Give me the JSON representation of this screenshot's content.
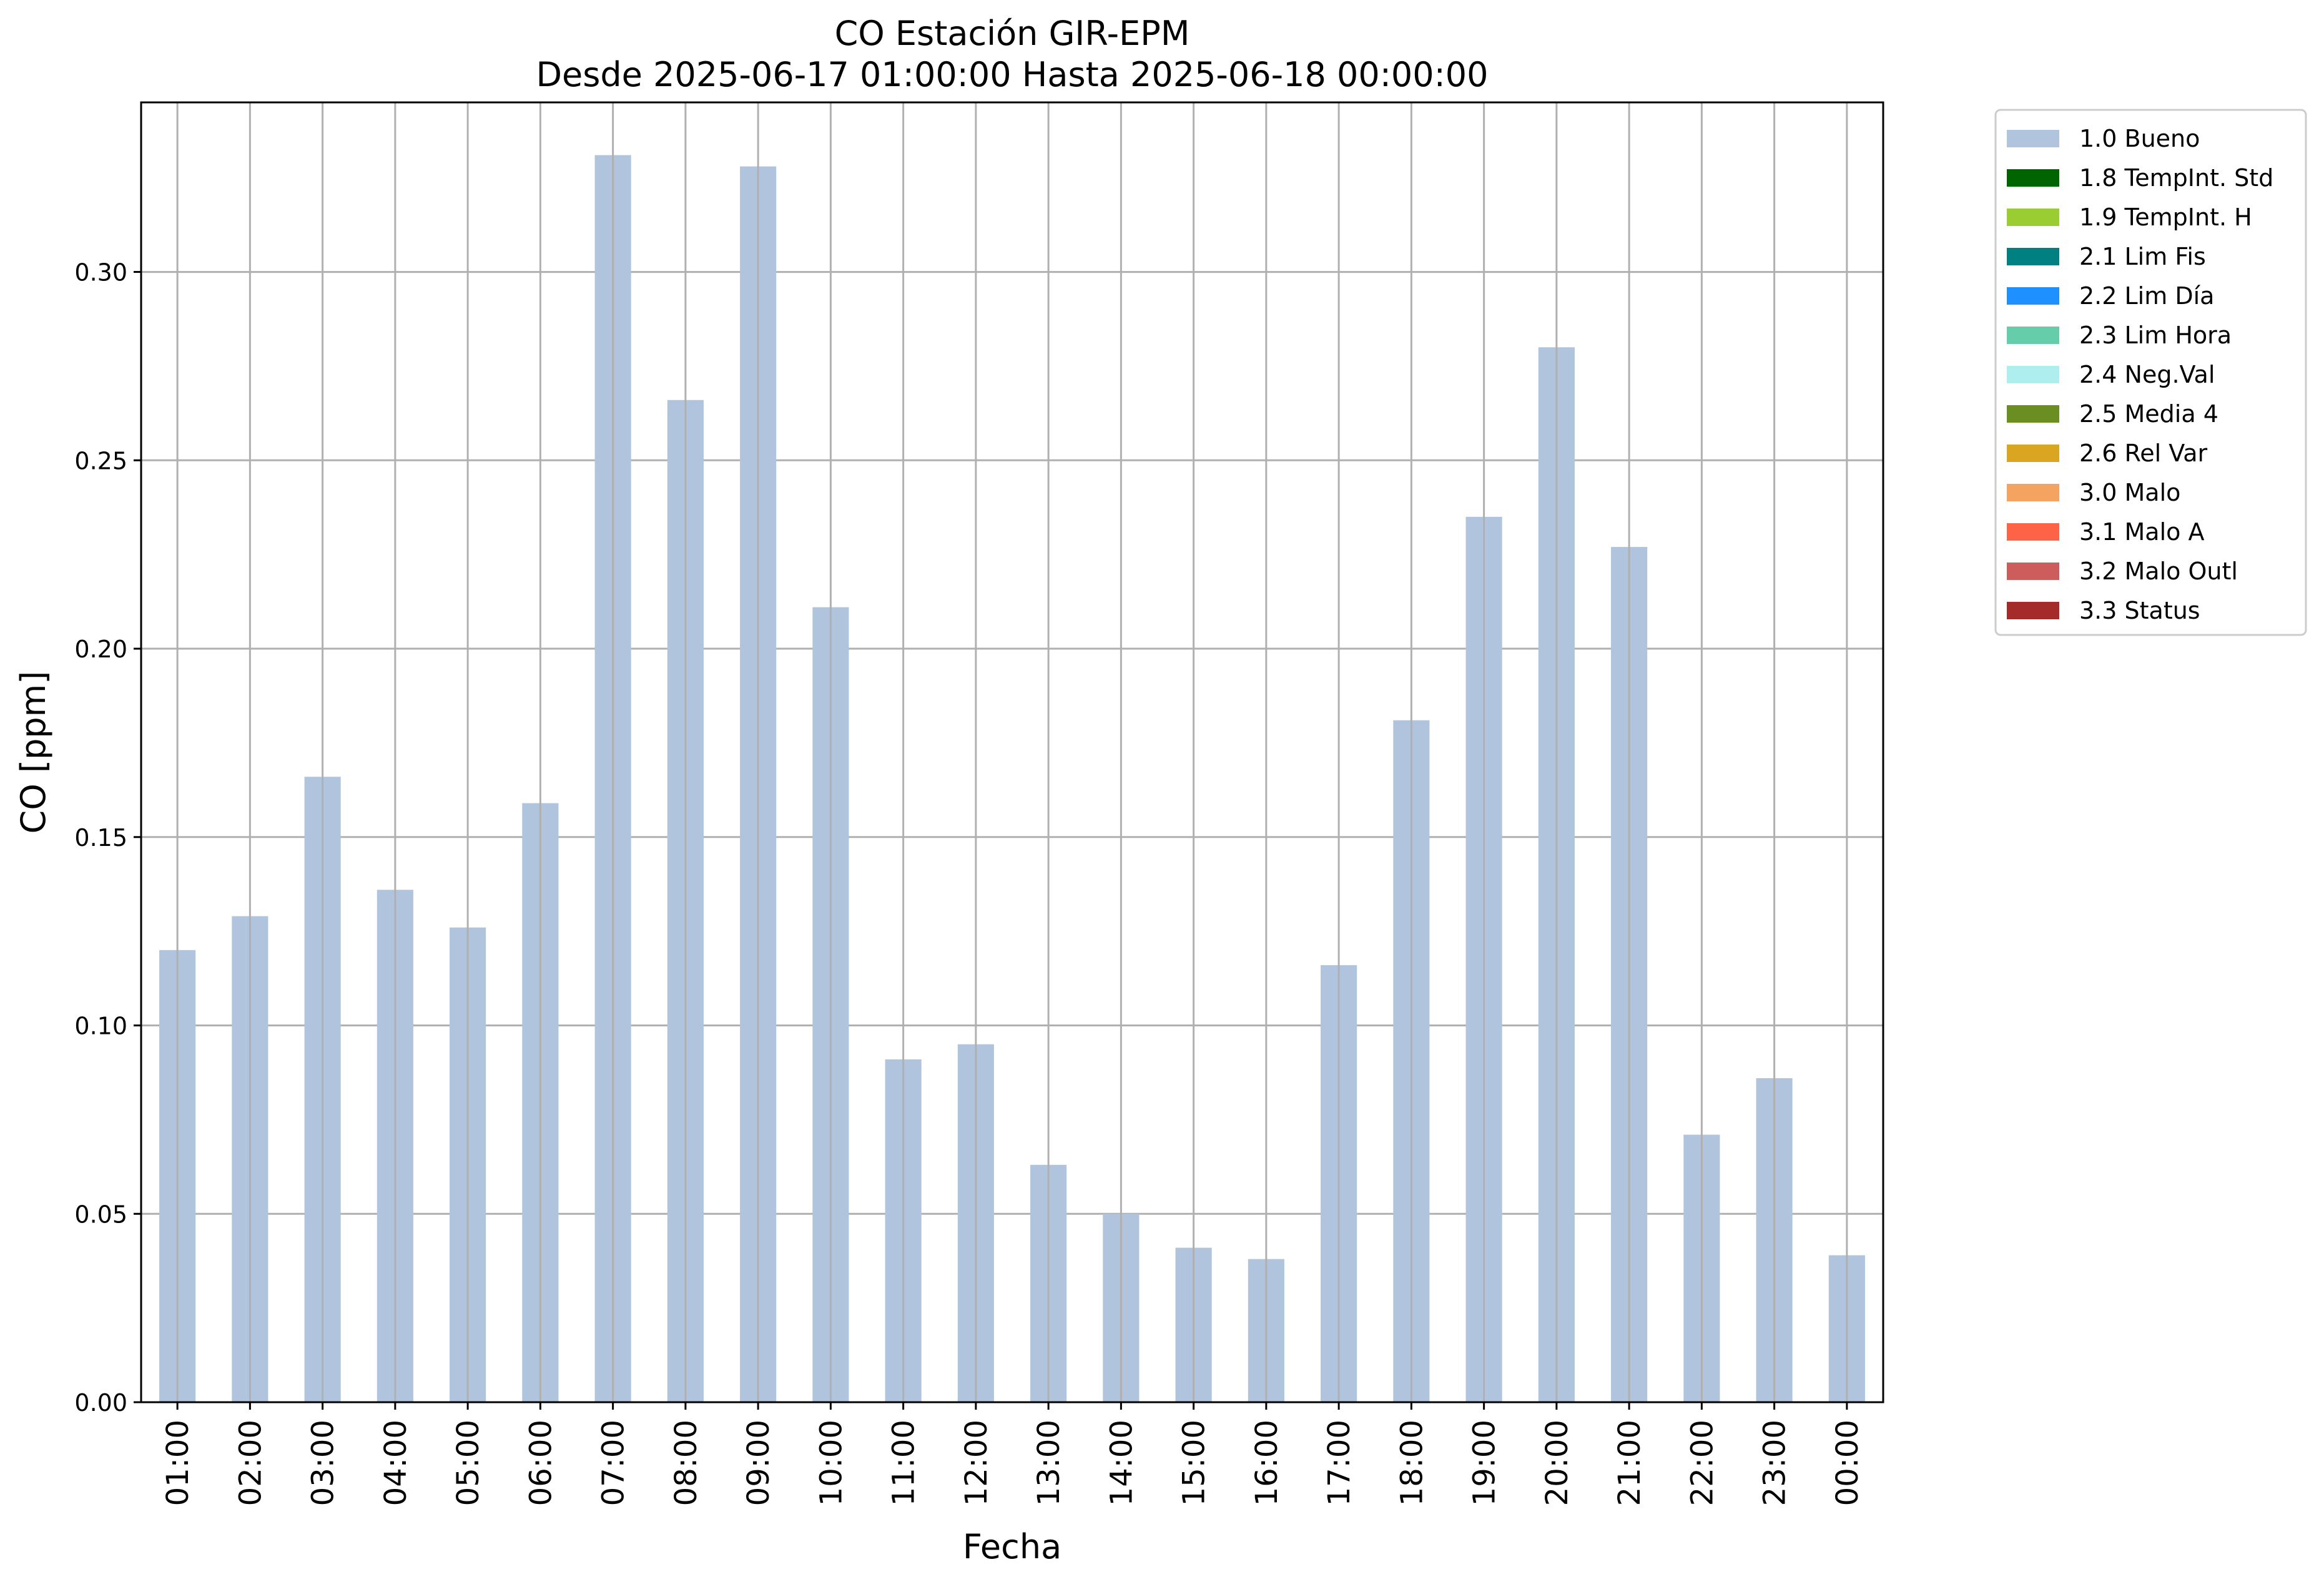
{
  "chart_data": {
    "type": "bar",
    "title": "CO Estación GIR-EPM",
    "subtitle": "Desde 2025-06-17 01:00:00 Hasta 2025-06-18 00:00:00",
    "xlabel": "Fecha",
    "ylabel": "CO [ppm]",
    "ylim": [
      0,
      0.345
    ],
    "yticks": [
      "0.00",
      "0.05",
      "0.10",
      "0.15",
      "0.20",
      "0.25",
      "0.30"
    ],
    "grid": true,
    "legend_position": "outside top-right",
    "categories": [
      "01:00",
      "02:00",
      "03:00",
      "04:00",
      "05:00",
      "06:00",
      "07:00",
      "08:00",
      "09:00",
      "10:00",
      "11:00",
      "12:00",
      "13:00",
      "14:00",
      "15:00",
      "16:00",
      "17:00",
      "18:00",
      "19:00",
      "20:00",
      "21:00",
      "22:00",
      "23:00",
      "00:00"
    ],
    "series": [
      {
        "name": "1.0 Bueno",
        "color": "#b0c4de",
        "values": [
          0.12,
          0.129,
          0.166,
          0.136,
          0.126,
          0.159,
          0.331,
          0.266,
          0.328,
          0.211,
          0.091,
          0.095,
          0.063,
          0.05,
          0.041,
          0.038,
          0.116,
          0.181,
          0.235,
          0.28,
          0.227,
          0.071,
          0.086,
          0.039
        ]
      }
    ],
    "legend": [
      {
        "label": "1.0 Bueno",
        "color": "#b0c4de"
      },
      {
        "label": "1.8 TempInt. Std",
        "color": "#006400"
      },
      {
        "label": "1.9 TempInt. H",
        "color": "#9acd32"
      },
      {
        "label": "2.1 Lim Fis",
        "color": "#008080"
      },
      {
        "label": "2.2 Lim Día",
        "color": "#1e90ff"
      },
      {
        "label": "2.3 Lim Hora",
        "color": "#66cdaa"
      },
      {
        "label": "2.4 Neg.Val",
        "color": "#afeeee"
      },
      {
        "label": "2.5 Media 4",
        "color": "#6b8e23"
      },
      {
        "label": "2.6 Rel Var",
        "color": "#daa520"
      },
      {
        "label": "3.0 Malo",
        "color": "#f4a460"
      },
      {
        "label": "3.1 Malo A",
        "color": "#ff6347"
      },
      {
        "label": "3.2 Malo Outl",
        "color": "#cd5c5c"
      },
      {
        "label": "3.3 Status",
        "color": "#a52a2a"
      }
    ]
  }
}
